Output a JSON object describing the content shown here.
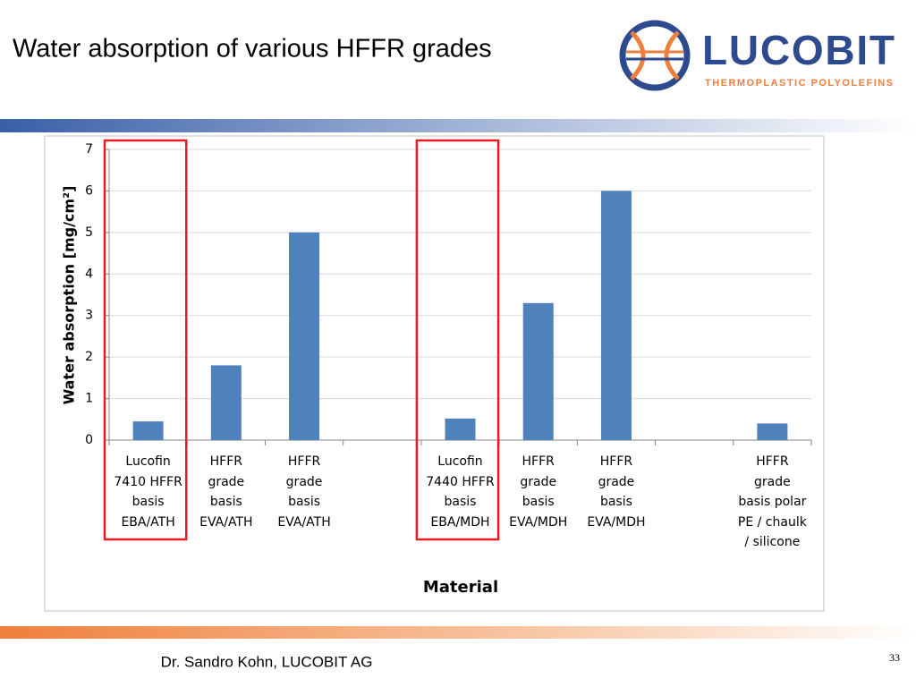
{
  "slide_title": "Water absorption of various HFFR grades",
  "logo": {
    "name": "LUCOBIT",
    "tagline": "THERMOPLASTIC POLYOLEFINS"
  },
  "footer": "Dr. Sandro Kohn, LUCOBIT AG",
  "page_number": "33",
  "chart_data": {
    "type": "bar",
    "x_label": "Material",
    "y_label": "Water absorption [mg/cm²]",
    "categories": [
      "Lucofin 7410 HFFR basis EBA/ATH",
      "HFFR grade basis EVA/ATH",
      "HFFR grade basis EVA/ATH",
      null,
      "Lucofin 7440 HFFR basis EBA/MDH",
      "HFFR grade basis EVA/MDH",
      "HFFR grade basis EVA/MDH",
      null,
      "HFFR grade basis polar PE / chaulk / silicone"
    ],
    "values": [
      0.45,
      1.8,
      5.0,
      null,
      0.52,
      3.3,
      6.0,
      null,
      0.4
    ],
    "color": "#4f81bd",
    "ylim": [
      0,
      7
    ],
    "yticks": [
      0,
      1,
      2,
      3,
      4,
      5,
      6,
      7
    ],
    "grid": true
  }
}
